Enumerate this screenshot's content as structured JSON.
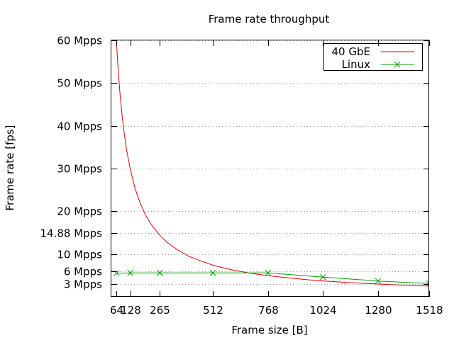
{
  "chart_data": {
    "type": "line",
    "title": "Frame rate throughput",
    "xlabel": "Frame size [B]",
    "ylabel": "Frame rate [fps]",
    "xlim": [
      40,
      1518
    ],
    "ylim": [
      0,
      60
    ],
    "x_ticks": [
      {
        "value": 64,
        "label": "64"
      },
      {
        "value": 128,
        "label": "128"
      },
      {
        "value": 265,
        "label": "265"
      },
      {
        "value": 512,
        "label": "512"
      },
      {
        "value": 768,
        "label": "768"
      },
      {
        "value": 1024,
        "label": "1024"
      },
      {
        "value": 1280,
        "label": "1280"
      },
      {
        "value": 1518,
        "label": "1518"
      }
    ],
    "y_ticks": [
      {
        "value": 3,
        "label": "3 Mpps"
      },
      {
        "value": 6,
        "label": "6 Mpps"
      },
      {
        "value": 10,
        "label": "10 Mpps"
      },
      {
        "value": 14.88,
        "label": "14.88 Mpps"
      },
      {
        "value": 20,
        "label": "20 Mpps"
      },
      {
        "value": 30,
        "label": "30 Mpps"
      },
      {
        "value": 40,
        "label": "40 Mpps"
      },
      {
        "value": 50,
        "label": "50 Mpps"
      },
      {
        "value": 60,
        "label": "60 Mpps"
      }
    ],
    "grid": true,
    "legend_position": "top-right",
    "series": [
      {
        "name": "40 GbE",
        "color": "#e00000",
        "marker": "none",
        "x": [
          64,
          70,
          80,
          90,
          100,
          110,
          128,
          150,
          175,
          200,
          225,
          265,
          300,
          350,
          400,
          450,
          512,
          600,
          700,
          768,
          850,
          950,
          1024,
          1150,
          1280,
          1400,
          1518
        ],
        "y": [
          59.5,
          54.3,
          47.6,
          42.3,
          38.1,
          34.6,
          29.8,
          25.4,
          21.8,
          19.0,
          16.9,
          14.4,
          12.7,
          10.9,
          9.5,
          8.5,
          7.4,
          6.3,
          5.4,
          4.96,
          4.5,
          4.0,
          3.72,
          3.31,
          2.98,
          2.72,
          2.51
        ]
      },
      {
        "name": "Linux",
        "color": "#00a000",
        "marker": "x",
        "x": [
          64,
          128,
          265,
          512,
          768,
          1024,
          1280,
          1518
        ],
        "y": [
          5.5,
          5.6,
          5.6,
          5.6,
          5.6,
          4.6,
          3.7,
          3.1
        ]
      }
    ]
  }
}
